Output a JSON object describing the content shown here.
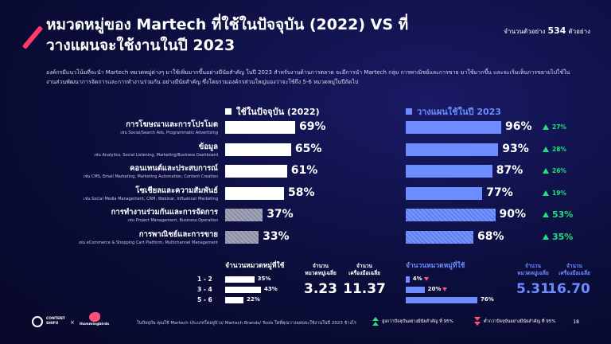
{
  "title": "หมวดหมู่ของ Martech ที่ใช้ในปัจจุบัน (2022) VS ที่วางแผนจะใช้งานในปี 2023",
  "sample": {
    "prefix": "จำนวนตัวอย่าง",
    "count": "534",
    "suffix": "ตัวอย่าง"
  },
  "description": "องค์กรมีแนวโน้มที่จะนำ Martech หมวดหมู่ต่างๆ มาใช้เพิ่มมากขึ้นอย่างมีนัยสำคัญ ในปี 2023 สำหรับงานด้านการตลาด จะมีการนำ Martech กลุ่ม การพาณิชย์และการขาย มาใช้มากขึ้น และจะเริ่มเห็นการขยายไปใช้ในงานส่วนพัฒนาการจัดการและการทำงานร่วมกัน อย่างมีนัยสำคัญ ซึ่งโดยรวมองค์กรส่วนใหญ่มองว่าจะใช้ถึง 5-6 หมวดหมู่ในปีถัดไป",
  "colors": {
    "current": "#ffffff",
    "planned": "#6b8dff",
    "up": "#22e07a",
    "down": "#ff4f7b",
    "accent": "#ff3b6b"
  },
  "chart_data": {
    "type": "bar",
    "orientation": "horizontal",
    "series": [
      {
        "name": "ใช้ในปัจจุบัน (2022)",
        "values": [
          69,
          65,
          61,
          58,
          37,
          33
        ]
      },
      {
        "name": "วางแผนใช้ในปี 2023",
        "values": [
          96,
          93,
          87,
          77,
          90,
          68
        ]
      }
    ],
    "categories": [
      {
        "label": "การโฆษณาและการโปรโมต",
        "sub": "เช่น Social/Search Ads, Programmatic Advertising"
      },
      {
        "label": "ข้อมูล",
        "sub": "เช่น Analytics, Social Listening, Marketing/Business Dashboard"
      },
      {
        "label": "คอนเทนต์และประสบการณ์",
        "sub": "เช่น CMS, Email Marketing, Marketing Automation, Content Creation"
      },
      {
        "label": "โซเชียลและความสัมพันธ์",
        "sub": "เช่น Social Media Management, CRM, Webinar, Influencer Marketing"
      },
      {
        "label": "การทำงานร่วมกันและการจัดการ",
        "sub": "เช่น Project Management, Business Operation"
      },
      {
        "label": "การพาณิชย์และการขาย",
        "sub": "เช่น eCommerce & Shopping Cart Platform, Multichannel Management"
      }
    ],
    "value_labels_current": [
      "69%",
      "65%",
      "61%",
      "58%",
      "37%",
      "33%"
    ],
    "value_labels_planned": [
      "96%",
      "93%",
      "87%",
      "77%",
      "90%",
      "68%"
    ],
    "highlighted_current": [
      false,
      false,
      false,
      false,
      true,
      true
    ],
    "highlighted_planned": [
      false,
      false,
      false,
      false,
      true,
      true
    ],
    "deltas": [
      "27%",
      "28%",
      "26%",
      "19%",
      "53%",
      "35%"
    ],
    "delta_significant": [
      false,
      false,
      false,
      false,
      true,
      true
    ],
    "xlim": [
      0,
      100
    ]
  },
  "counts": {
    "title_current": "จำนวนหมวดหมู่ที่ใช้",
    "title_planned": "จำนวนหมวดหมู่ที่ใช้",
    "groups": [
      "1 - 2",
      "3 - 4",
      "5 - 6"
    ],
    "current": [
      35,
      43,
      22
    ],
    "current_labels": [
      "35%",
      "43%",
      "22%"
    ],
    "planned": [
      4,
      20,
      76
    ],
    "planned_labels": [
      "4%",
      "20%",
      "76%"
    ],
    "planned_down": [
      true,
      true,
      false
    ],
    "avg_current": {
      "label1": "จำนวน",
      "label2": "หมวดหมู่เฉลี่ย",
      "value": "3.23"
    },
    "tools_current": {
      "label1": "จำนวน",
      "label2": "เครื่องมือเฉลี่ย",
      "value": "11.37"
    },
    "avg_planned": {
      "label1": "จำนวน",
      "label2": "หมวดหมู่เฉลี่ย",
      "value": "5.31"
    },
    "tools_planned": {
      "label1": "จำนวน",
      "label2": "เครื่องมือเฉลี่ย",
      "value": "16.70"
    }
  },
  "footer": {
    "note": "ในปัจจุบัน คุณใช้ Martech ประเภทใดอยู่บ้าง/ Martech Brands/ Tools ใดที่คุณวางแผนจะใช้งานในปี 2023 ข้างไร",
    "legend_up": "สูงกว่าปัจจุบันอย่างมีนัยสำคัญ ที่ 95%",
    "legend_down": "ต่ำกว่าปัจจุบันอย่างมีนัยสำคัญ ที่ 95%",
    "page": "18",
    "logo1": [
      "CONTENT",
      "SHIFU"
    ],
    "logo_x": "×",
    "logo2": "Hummingbirds"
  }
}
